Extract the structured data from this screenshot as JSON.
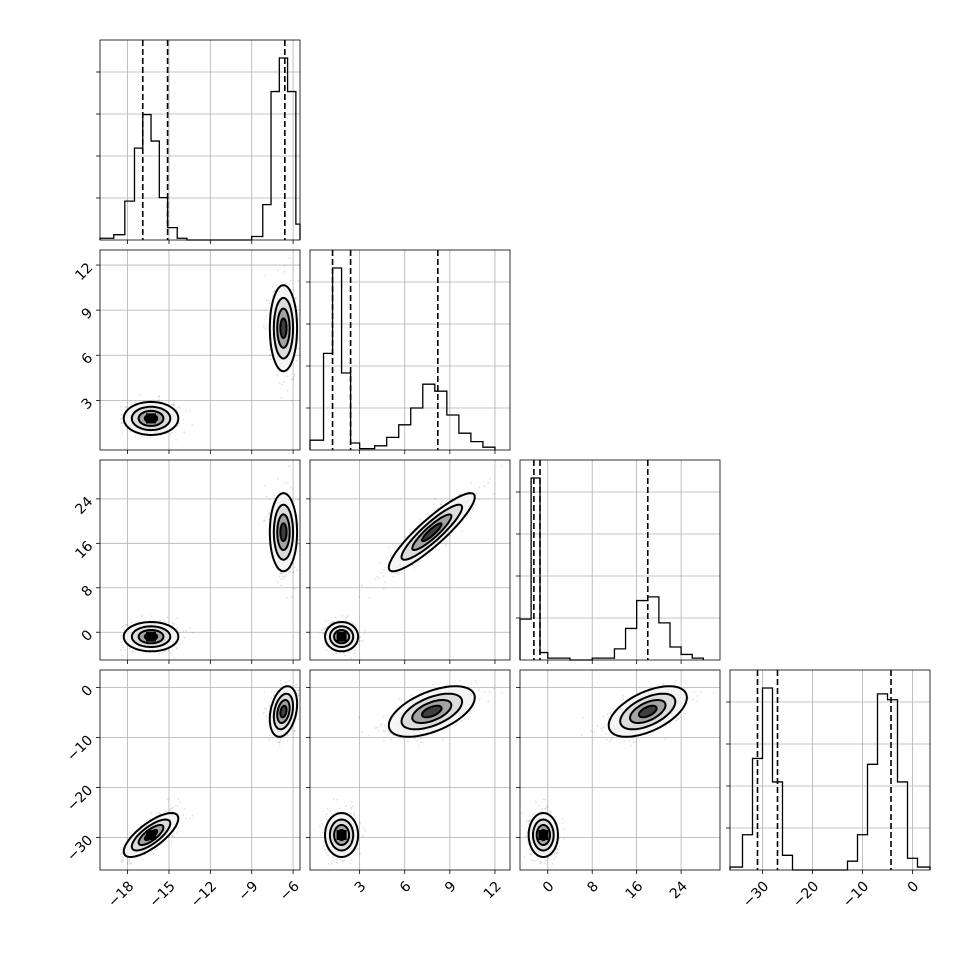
{
  "chart_data": {
    "type": "corner",
    "parameters": 4,
    "grid": true,
    "axes": [
      {
        "range": [
          -20.0,
          -5.5
        ],
        "ticks": [
          -18,
          -15,
          -12,
          -9,
          -6
        ],
        "tick_labels": [
          "−18",
          "−15",
          "−12",
          "−9",
          "−6"
        ]
      },
      {
        "range": [
          -0.3,
          13.0
        ],
        "ticks": [
          3,
          6,
          9,
          12
        ],
        "tick_labels": [
          "3",
          "6",
          "9",
          "12"
        ]
      },
      {
        "range": [
          -5.0,
          31.0
        ],
        "ticks": [
          0,
          8,
          16,
          24
        ],
        "tick_labels": [
          "0",
          "8",
          "16",
          "24"
        ]
      },
      {
        "range": [
          -36.5,
          3.5
        ],
        "ticks": [
          -30,
          -20,
          -10,
          0
        ],
        "tick_labels": [
          "−30",
          "−20",
          "−10",
          "0"
        ]
      }
    ],
    "modes": [
      {
        "center": [
          -16.3,
          1.8,
          -0.8,
          -29.5
        ],
        "sd": [
          0.9,
          0.5,
          1.2,
          2.0
        ],
        "weight": 0.5
      },
      {
        "center": [
          -6.7,
          7.8,
          18.0,
          -4.8
        ],
        "sd": [
          0.45,
          1.3,
          3.2,
          2.3
        ],
        "weight": 0.5
      }
    ],
    "quantiles": [
      [
        -16.9,
        -15.1,
        -6.6
      ],
      [
        1.2,
        2.4,
        8.2
      ],
      [
        -2.5,
        -1.4,
        18.0
      ],
      [
        -31.0,
        -27.0,
        -4.3
      ]
    ],
    "histograms": [
      {
        "bin_edges": [
          -20.0,
          -19.0,
          -18.2,
          -17.5,
          -16.9,
          -16.3,
          -15.7,
          -15.1,
          -14.4,
          -13.7,
          -9.0,
          -8.2,
          -7.6,
          -7.0,
          -6.4,
          -5.8,
          -5.5
        ],
        "counts": [
          1,
          3,
          22,
          52,
          71,
          56,
          24,
          7,
          1,
          0,
          2,
          20,
          84,
          103,
          84,
          9
        ]
      },
      {
        "bin_edges": [
          -0.3,
          0.6,
          1.2,
          1.8,
          2.4,
          3.0,
          4.0,
          4.8,
          5.6,
          6.4,
          7.2,
          8.0,
          8.8,
          9.6,
          10.4,
          11.2,
          12.0
        ],
        "counts": [
          7,
          69,
          130,
          55,
          5,
          1,
          3,
          9,
          18,
          30,
          47,
          42,
          25,
          12,
          6,
          2
        ]
      },
      {
        "bin_edges": [
          -5.0,
          -3.0,
          -1.4,
          0.0,
          4.0,
          8.0,
          12.0,
          14.0,
          16.0,
          18.0,
          20.0,
          22.0,
          24.0,
          26.0,
          28.0
        ],
        "counts": [
          22,
          98,
          4,
          1,
          0,
          1,
          6,
          17,
          32,
          34,
          20,
          7,
          3,
          1
        ]
      },
      {
        "bin_edges": [
          -36.5,
          -34.0,
          -32.0,
          -30.0,
          -28.0,
          -26.0,
          -24.0,
          -13.0,
          -11.0,
          -9.0,
          -7.0,
          -5.0,
          -3.0,
          -1.0,
          1.0,
          3.5
        ],
        "counts": [
          1,
          12,
          38,
          62,
          30,
          5,
          0,
          3,
          12,
          36,
          60,
          58,
          30,
          4,
          1
        ]
      }
    ]
  }
}
